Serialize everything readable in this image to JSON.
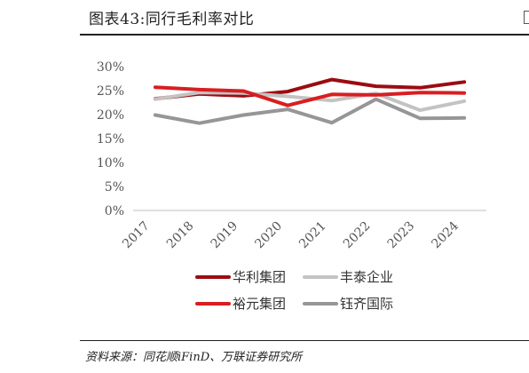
{
  "header": {
    "title": "图表43:同行毛利率对比"
  },
  "footer": {
    "source": "资料来源：同花顺iFinD、万联证券研究所"
  },
  "chart_data": {
    "type": "line",
    "title": "",
    "xlabel": "",
    "ylabel": "",
    "x": [
      "2017",
      "2018",
      "2019",
      "2020",
      "2021",
      "2022",
      "2023",
      "2024"
    ],
    "ylim": [
      0,
      30
    ],
    "yticks": [
      0,
      5,
      10,
      15,
      20,
      25,
      30
    ],
    "ytick_labels": [
      "0%",
      "5%",
      "10%",
      "15%",
      "20%",
      "25%",
      "30%"
    ],
    "grid": false,
    "legend_position": "bottom",
    "series": [
      {
        "name": "华利集团",
        "color": "#9b0c12",
        "values": [
          23.3,
          24.3,
          23.9,
          24.8,
          27.3,
          25.9,
          25.6,
          26.8
        ]
      },
      {
        "name": "丰泰企业",
        "color": "#c3c3c3",
        "values": [
          23.2,
          24.6,
          24.5,
          23.8,
          22.9,
          24.4,
          20.9,
          22.8
        ]
      },
      {
        "name": "裕元集团",
        "color": "#d81e22",
        "values": [
          25.7,
          25.2,
          24.9,
          21.9,
          24.2,
          24.1,
          24.6,
          24.5
        ]
      },
      {
        "name": "钰齐国际",
        "color": "#969696",
        "values": [
          19.9,
          18.2,
          19.9,
          21.1,
          18.3,
          23.2,
          19.2,
          19.3
        ]
      }
    ]
  }
}
